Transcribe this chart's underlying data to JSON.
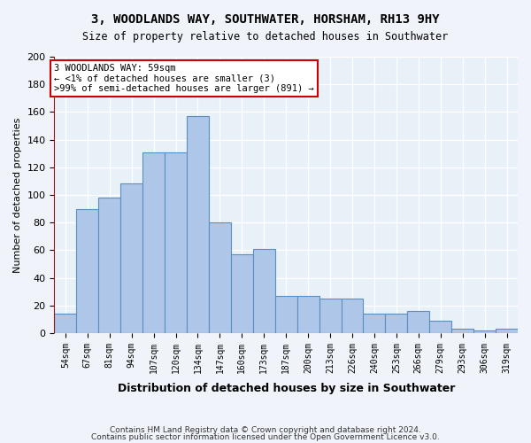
{
  "title": "3, WOODLANDS WAY, SOUTHWATER, HORSHAM, RH13 9HY",
  "subtitle": "Size of property relative to detached houses in Southwater",
  "xlabel": "Distribution of detached houses by size in Southwater",
  "ylabel": "Number of detached properties",
  "bar_labels": [
    "54sqm",
    "67sqm",
    "81sqm",
    "94sqm",
    "107sqm",
    "120sqm",
    "134sqm",
    "147sqm",
    "160sqm",
    "173sqm",
    "187sqm",
    "200sqm",
    "213sqm",
    "226sqm",
    "240sqm",
    "253sqm",
    "266sqm",
    "279sqm",
    "293sqm",
    "306sqm",
    "319sqm"
  ],
  "bar_values": [
    14,
    90,
    98,
    108,
    131,
    131,
    157,
    80,
    57,
    61,
    27,
    27,
    25,
    25,
    14,
    14,
    16,
    9,
    3,
    2,
    3
  ],
  "bar_color": "#aec6e8",
  "bar_edge_color": "#5a8fc2",
  "highlight_bar_index": 0,
  "highlight_color": "#ff0000",
  "annotation_text": "3 WOODLANDS WAY: 59sqm\n← <1% of detached houses are smaller (3)\n>99% of semi-detached houses are larger (891) →",
  "annotation_box_color": "#ffffff",
  "annotation_box_edge_color": "#cc0000",
  "ylim": [
    0,
    200
  ],
  "yticks": [
    0,
    20,
    40,
    60,
    80,
    100,
    120,
    140,
    160,
    180,
    200
  ],
  "background_color": "#e8f0f8",
  "grid_color": "#ffffff",
  "footer_line1": "Contains HM Land Registry data © Crown copyright and database right 2024.",
  "footer_line2": "Contains public sector information licensed under the Open Government Licence v3.0."
}
